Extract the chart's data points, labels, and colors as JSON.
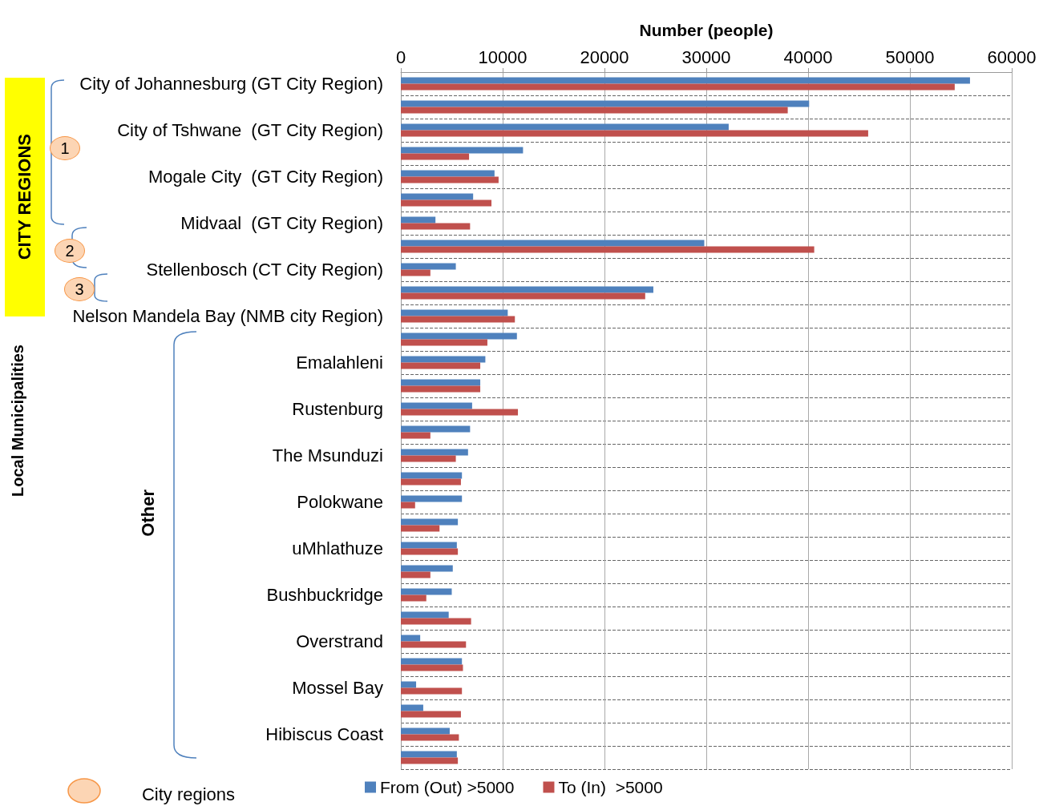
{
  "chart_data": {
    "type": "bar",
    "orientation": "horizontal",
    "xlabel": "Number (people)",
    "categories": [
      "City of Johannesburg (GT City Region)",
      null,
      "City of Tshwane  (GT City Region)",
      null,
      "Mogale City  (GT City Region)",
      null,
      "Midvaal  (GT City Region)",
      null,
      "Stellenbosch (CT City Region)",
      null,
      "Nelson Mandela Bay (NMB city Region)",
      null,
      "Emalahleni",
      null,
      "Rustenburg",
      null,
      "The Msunduzi",
      null,
      "Polokwane",
      null,
      "uMhlathuze",
      null,
      "Bushbuckridge",
      null,
      "Overstrand",
      null,
      "Mossel Bay",
      null,
      "Hibiscus Coast",
      null
    ],
    "series": [
      {
        "name": "From (Out) >5000",
        "color": "#4f81bd",
        "values": [
          55900,
          40100,
          32200,
          12000,
          9200,
          7100,
          3400,
          29800,
          5400,
          24800,
          10500,
          11400,
          8300,
          7800,
          7000,
          6800,
          6600,
          6000,
          6000,
          5600,
          5500,
          5100,
          5000,
          4700,
          1900,
          6000,
          1500,
          2200,
          4800,
          5500
        ]
      },
      {
        "name": "To (In)  >5000",
        "color": "#c0504d",
        "values": [
          54400,
          38000,
          45900,
          6700,
          9600,
          8900,
          6800,
          40600,
          2900,
          24000,
          11200,
          8500,
          7800,
          7800,
          11500,
          2900,
          5400,
          5900,
          1400,
          3800,
          5600,
          2900,
          2500,
          6900,
          6400,
          6100,
          6000,
          5900,
          5700,
          5600
        ]
      }
    ],
    "xlim": [
      0,
      60000
    ],
    "xticks": [
      0,
      10000,
      20000,
      30000,
      40000,
      50000,
      60000
    ],
    "grid": true,
    "legend": "bottom",
    "annotations": [
      "CITY REGIONS",
      "1",
      "2",
      "3",
      "Local Municipalities",
      "Other",
      "City regions"
    ]
  }
}
